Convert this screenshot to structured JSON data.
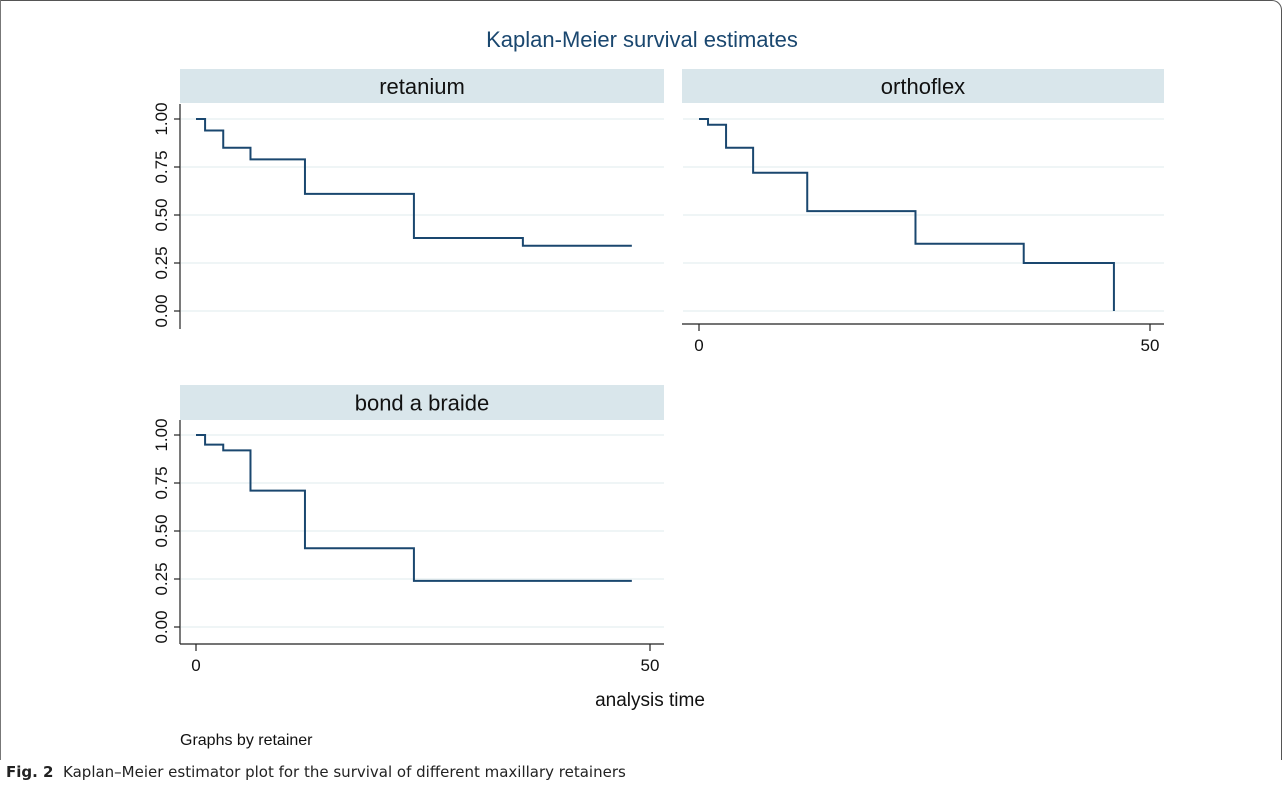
{
  "chart_data": {
    "type": "line",
    "title": "Kaplan-Meier survival estimates",
    "xlabel": "analysis time",
    "note": "Graphs by retainer",
    "colors": {
      "line": "#1a476f",
      "panel_header": "#d9e6eb",
      "grid": "#eaf2f3",
      "title": "#1a476f"
    },
    "xlim": [
      0,
      50
    ],
    "ylim": [
      0,
      1
    ],
    "x_ticks": [
      "0",
      "50"
    ],
    "y_ticks": [
      "0.00",
      "0.25",
      "0.50",
      "0.75",
      "1.00"
    ],
    "panels": [
      {
        "name": "retanium",
        "steps": [
          {
            "x": 0,
            "y": 1.0
          },
          {
            "x": 1,
            "y": 0.94
          },
          {
            "x": 3,
            "y": 0.85
          },
          {
            "x": 6,
            "y": 0.79
          },
          {
            "x": 12,
            "y": 0.61
          },
          {
            "x": 24,
            "y": 0.38
          },
          {
            "x": 36,
            "y": 0.34
          },
          {
            "x": 48,
            "y": 0.34
          }
        ]
      },
      {
        "name": "orthoflex",
        "steps": [
          {
            "x": 0,
            "y": 1.0
          },
          {
            "x": 1,
            "y": 0.97
          },
          {
            "x": 3,
            "y": 0.85
          },
          {
            "x": 6,
            "y": 0.72
          },
          {
            "x": 12,
            "y": 0.52
          },
          {
            "x": 24,
            "y": 0.35
          },
          {
            "x": 36,
            "y": 0.25
          },
          {
            "x": 46,
            "y": 0.0
          }
        ]
      },
      {
        "name": "bond a braide",
        "steps": [
          {
            "x": 0,
            "y": 1.0
          },
          {
            "x": 1,
            "y": 0.95
          },
          {
            "x": 3,
            "y": 0.92
          },
          {
            "x": 6,
            "y": 0.71
          },
          {
            "x": 12,
            "y": 0.41
          },
          {
            "x": 24,
            "y": 0.24
          },
          {
            "x": 48,
            "y": 0.24
          }
        ]
      }
    ]
  },
  "caption": {
    "label": "Fig. 2",
    "text": "Kaplan–Meier estimator plot for the survival of different maxillary retainers"
  }
}
